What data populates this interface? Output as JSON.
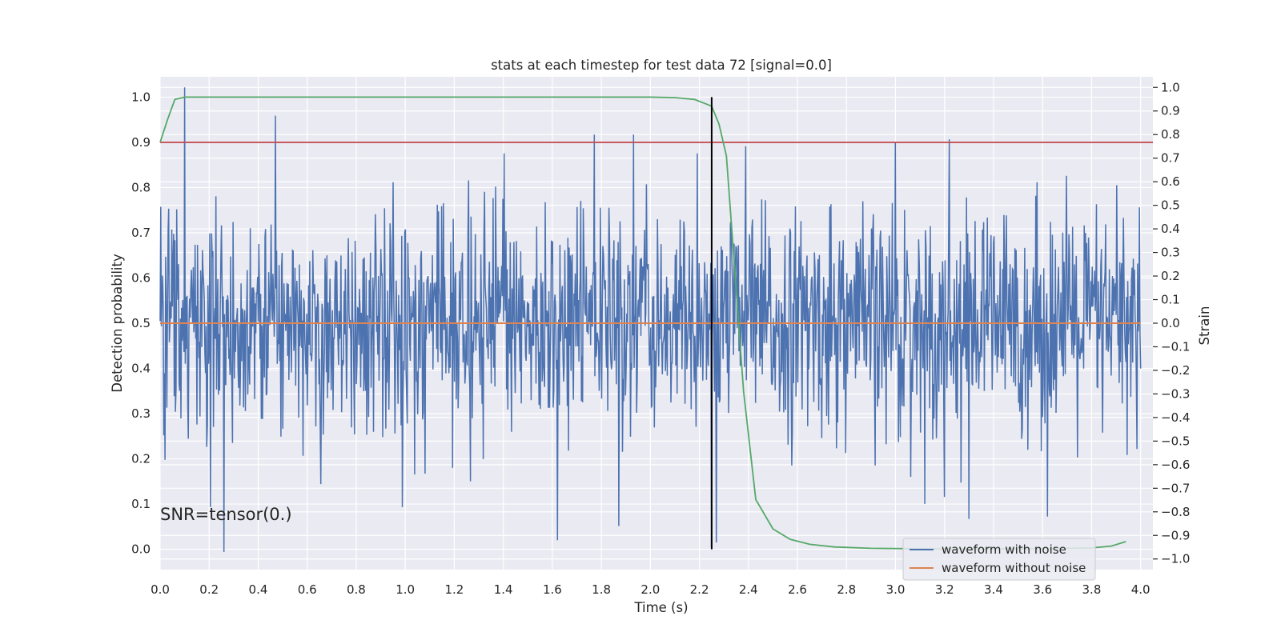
{
  "chart_data": {
    "type": "line",
    "title": "stats at each timestep for test data 72 [signal=0.0]",
    "xlabel": "Time (s)",
    "ylabel": "Detection probability",
    "y2label": "Strain",
    "xlim": [
      0.0,
      4.05
    ],
    "ylim": [
      -0.045,
      1.045
    ],
    "y2lim": [
      -1.045,
      1.045
    ],
    "x_ticks": [
      "0.0",
      "0.2",
      "0.4",
      "0.6",
      "0.8",
      "1.0",
      "1.2",
      "1.4",
      "1.6",
      "1.8",
      "2.0",
      "2.2",
      "2.4",
      "2.6",
      "2.8",
      "3.0",
      "3.2",
      "3.4",
      "3.6",
      "3.8",
      "4.0"
    ],
    "y_ticks": [
      "0.0",
      "0.1",
      "0.2",
      "0.3",
      "0.4",
      "0.5",
      "0.6",
      "0.7",
      "0.8",
      "0.9",
      "1.0"
    ],
    "y2_ticks": [
      "−1.0",
      "−0.9",
      "−0.8",
      "−0.7",
      "−0.6",
      "−0.5",
      "−0.4",
      "−0.3",
      "−0.2",
      "−0.1",
      "0.0",
      "0.1",
      "0.2",
      "0.3",
      "0.4",
      "0.5",
      "0.6",
      "0.7",
      "0.8",
      "0.9",
      "1.0"
    ],
    "grid": true,
    "legend_position": "lower right",
    "annotation": "SNR=tensor(0.)",
    "series": [
      {
        "name": "waveform with noise",
        "axis": "right",
        "color": "#4c72b0",
        "x_range": [
          0.0,
          4.0
        ],
        "samples": 1600,
        "amplitude_typical": 0.32,
        "peaks": [
          [
            0.1,
            1.0
          ],
          [
            0.47,
            0.88
          ],
          [
            0.26,
            -0.97
          ],
          [
            1.62,
            -0.92
          ],
          [
            1.93,
            0.8
          ],
          [
            1.77,
            0.8
          ],
          [
            3.0,
            0.77
          ],
          [
            3.22,
            0.78
          ],
          [
            2.39,
            0.75
          ],
          [
            2.25,
            -0.95
          ],
          [
            2.27,
            -0.93
          ],
          [
            3.3,
            -0.83
          ],
          [
            3.62,
            -0.82
          ],
          [
            1.87,
            -0.86
          ]
        ],
        "description_of_values": "noisy strain oscillating around 0.0"
      },
      {
        "name": "waveform without noise",
        "axis": "right",
        "color": "#dd8452",
        "x": [
          0.0,
          4.0
        ],
        "y": [
          0.0,
          0.0
        ]
      },
      {
        "name": "detection probability",
        "axis": "left",
        "color": "#55a868",
        "x": [
          0.0,
          0.03,
          0.06,
          0.1,
          0.2,
          0.5,
          1.0,
          1.5,
          2.0,
          2.1,
          2.18,
          2.25,
          2.28,
          2.31,
          2.34,
          2.38,
          2.43,
          2.5,
          2.57,
          2.65,
          2.75,
          2.9,
          3.1,
          3.5,
          3.7,
          3.8,
          3.88,
          3.94
        ],
        "y": [
          0.9,
          0.95,
          0.995,
          1.0,
          1.0,
          1.0,
          1.0,
          1.0,
          1.0,
          0.999,
          0.995,
          0.98,
          0.94,
          0.87,
          0.65,
          0.35,
          0.11,
          0.045,
          0.022,
          0.011,
          0.005,
          0.002,
          0.001,
          0.001,
          0.002,
          0.003,
          0.007,
          0.017
        ]
      }
    ],
    "threshold_line": {
      "axis": "left",
      "y": 0.9,
      "color": "#c44e52"
    },
    "marker_line": {
      "axis": "left",
      "x": 2.25,
      "y": [
        0.0,
        1.0
      ],
      "color": "#000000"
    },
    "legend": [
      {
        "label": "waveform with noise",
        "color": "#4c72b0"
      },
      {
        "label": "waveform without noise",
        "color": "#dd8452"
      }
    ],
    "colors": {
      "plot_background": "#eaeaf2",
      "grid": "#ffffff"
    }
  }
}
